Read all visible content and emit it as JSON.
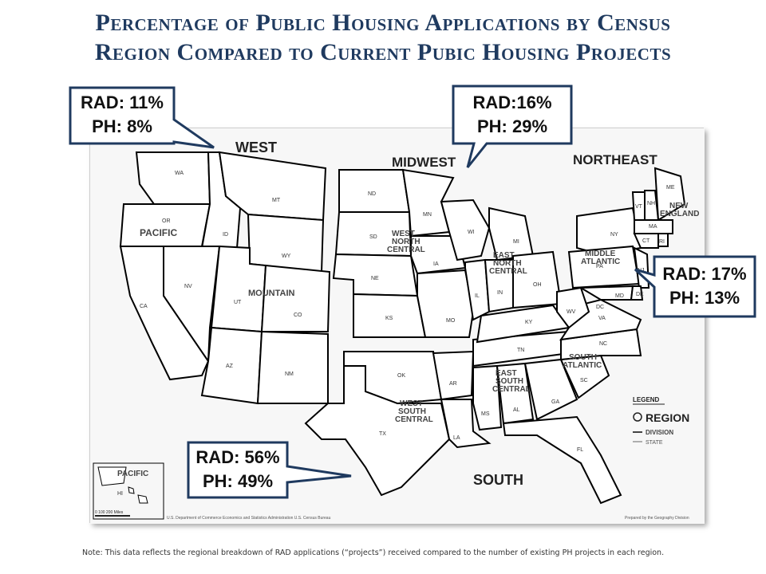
{
  "title": {
    "line1": "Percentage of Public Housing Applications by Census",
    "line2": "Region Compared to Current Pubic Housing Projects"
  },
  "callouts": {
    "west": {
      "line1": "RAD: 11%",
      "line2": "PH: 8%"
    },
    "midwest": {
      "line1": "RAD:16%",
      "line2": "PH: 29%"
    },
    "northeast": {
      "line1": "RAD: 17%",
      "line2": "PH: 13%"
    },
    "south": {
      "line1": "RAD: 56%",
      "line2": "PH: 49%"
    }
  },
  "regions": {
    "west": "WEST",
    "midwest": "MIDWEST",
    "northeast": "NORTHEAST",
    "south": "SOUTH"
  },
  "divisions": {
    "pacific": "PACIFIC",
    "mountain": "MOUNTAIN",
    "west_north_central_1": "WEST",
    "west_north_central_2": "NORTH",
    "west_north_central_3": "CENTRAL",
    "east_north_central_1": "EAST",
    "east_north_central_2": "NORTH",
    "east_north_central_3": "CENTRAL",
    "middle_atlantic_1": "MIDDLE",
    "middle_atlantic_2": "ATLANTIC",
    "new_england_1": "NEW",
    "new_england_2": "ENGLAND",
    "west_south_central_1": "WEST",
    "west_south_central_2": "SOUTH",
    "west_south_central_3": "CENTRAL",
    "east_south_central_1": "EAST",
    "east_south_central_2": "SOUTH",
    "east_south_central_3": "CENTRAL",
    "south_atlantic_1": "SOUTH",
    "south_atlantic_2": "ATLANTIC",
    "pacific_inset": "PACIFIC"
  },
  "states": {
    "WA": "WA",
    "OR": "OR",
    "CA": "CA",
    "ID": "ID",
    "NV": "NV",
    "MT": "MT",
    "WY": "WY",
    "UT": "UT",
    "AZ": "AZ",
    "CO": "CO",
    "NM": "NM",
    "ND": "ND",
    "SD": "SD",
    "NE": "NE",
    "KS": "KS",
    "MN": "MN",
    "IA": "IA",
    "MO": "MO",
    "WI": "WI",
    "IL": "IL",
    "MI": "MI",
    "IN": "IN",
    "OH": "OH",
    "KY": "KY",
    "TN": "TN",
    "MS": "MS",
    "AL": "AL",
    "GA": "GA",
    "FL": "FL",
    "SC": "SC",
    "NC": "NC",
    "VA": "VA",
    "WV": "WV",
    "MD": "MD",
    "DC": "DC",
    "DE": "DE",
    "NJ": "NJ",
    "PA": "PA",
    "NY": "NY",
    "CT": "CT",
    "MA": "MA",
    "VT": "VT",
    "NH": "NH",
    "ME": "ME",
    "RI": "RI",
    "OK": "OK",
    "TX": "TX",
    "AR": "AR",
    "LA": "LA",
    "HI": "HI",
    "AK": "AK"
  },
  "legend": {
    "heading": "LEGEND",
    "region": "REGION",
    "division": "DIVISION",
    "state": "STATE"
  },
  "scale": {
    "label": "0   100  200 Miles"
  },
  "credits": {
    "left": "U.S. Department of Commerce  Economics and Statistics Administration  U.S. Census Bureau",
    "right": "Prepared by the Geography Division"
  },
  "footnote": "Note: This data reflects the regional breakdown of RAD applications (“projects”) received compared to the number of existing PH projects in each region.",
  "colors": {
    "title": "#1f3a5f",
    "callout_border": "#1f3a5f",
    "region_border": "#000000",
    "state_border": "#555555",
    "land": "#ffffff"
  }
}
